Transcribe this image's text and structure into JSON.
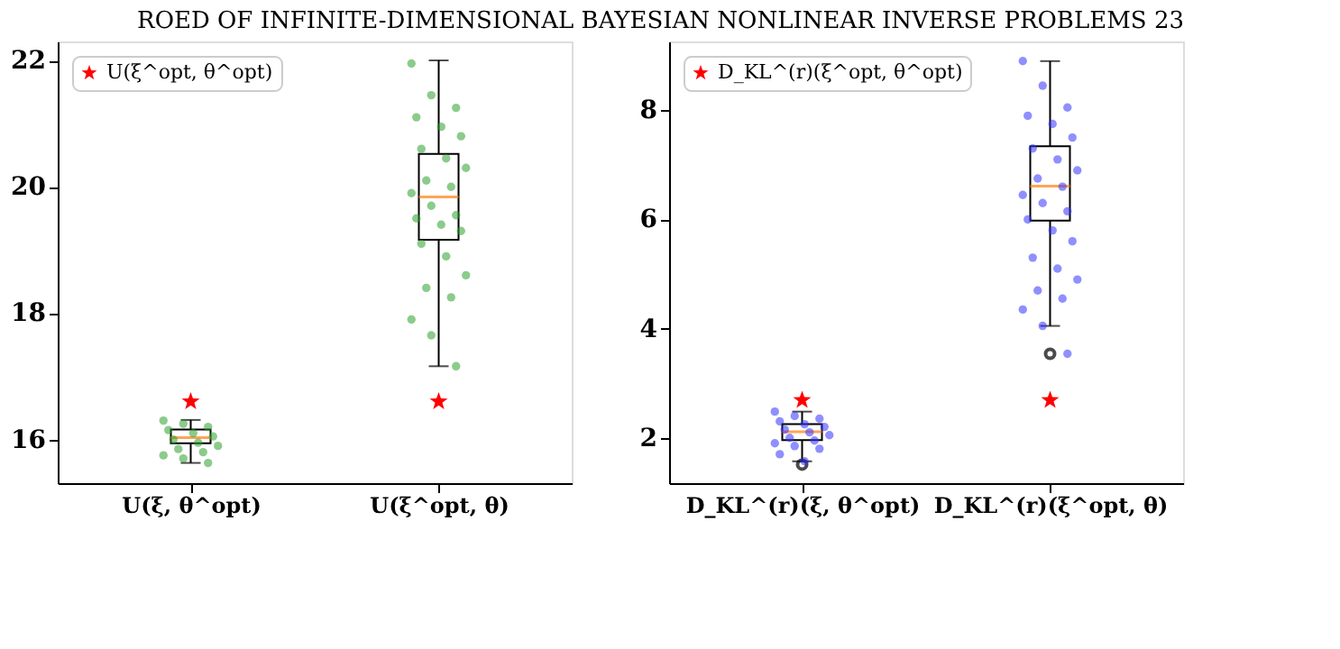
{
  "chart_data": [
    {
      "type": "box",
      "annotations": [
        "ROED OF INFINITE-DIMENSIONAL BAYESIAN NONLINEAR INVERSE PROBLEMS 23"
      ],
      "categories": [
        "U(ξ, θ^opt)",
        "U(ξ^opt, θ)"
      ],
      "ylim": [
        15.31,
        22.3
      ],
      "yticks": [
        16,
        18,
        20,
        22
      ],
      "grid": false,
      "legend": "top left",
      "series": [
        {
          "type": "box",
          "color": "#000000",
          "boxes": [
            {
              "low": 15.63,
              "q1": 15.94,
              "median": 16.03,
              "q3": 16.16,
              "high": 16.31
            },
            {
              "low": 17.16,
              "q1": 19.16,
              "median": 19.84,
              "q3": 20.52,
              "high": 22.0
            }
          ]
        },
        {
          "type": "scatter",
          "color": "#2ca02c",
          "marker": "circle",
          "x": [
            "U(ξ, θ^opt)",
            "U(ξ, θ^opt)",
            "U(ξ, θ^opt)",
            "U(ξ, θ^opt)",
            "U(ξ, θ^opt)",
            "U(ξ, θ^opt)",
            "U(ξ, θ^opt)",
            "U(ξ, θ^opt)",
            "U(ξ, θ^opt)",
            "U(ξ, θ^opt)",
            "U(ξ, θ^opt)",
            "U(ξ, θ^opt)",
            "U(ξ, θ^opt)",
            "U(ξ, θ^opt)",
            "U(ξ^opt, θ)",
            "U(ξ^opt, θ)",
            "U(ξ^opt, θ)",
            "U(ξ^opt, θ)",
            "U(ξ^opt, θ)",
            "U(ξ^opt, θ)",
            "U(ξ^opt, θ)",
            "U(ξ^opt, θ)",
            "U(ξ^opt, θ)",
            "U(ξ^opt, θ)",
            "U(ξ^opt, θ)",
            "U(ξ^opt, θ)",
            "U(ξ^opt, θ)",
            "U(ξ^opt, θ)",
            "U(ξ^opt, θ)",
            "U(ξ^opt, θ)",
            "U(ξ^opt, θ)",
            "U(ξ^opt, θ)",
            "U(ξ^opt, θ)",
            "U(ξ^opt, θ)",
            "U(ξ^opt, θ)",
            "U(ξ^opt, θ)",
            "U(ξ^opt, θ)",
            "U(ξ^opt, θ)",
            "U(ξ^opt, θ)"
          ],
          "values": [
            16.3,
            16.25,
            16.2,
            16.15,
            16.1,
            16.05,
            16.0,
            15.95,
            15.9,
            15.85,
            15.8,
            15.75,
            15.7,
            15.63,
            21.95,
            21.45,
            21.25,
            21.1,
            20.95,
            20.8,
            20.6,
            20.45,
            20.3,
            20.1,
            20.0,
            19.9,
            19.7,
            19.55,
            19.5,
            19.4,
            19.3,
            19.1,
            18.9,
            18.6,
            18.4,
            18.25,
            17.9,
            17.65,
            17.16
          ]
        },
        {
          "type": "scatter",
          "name": "U(ξ^opt, θ^opt)",
          "color": "#ff0000",
          "marker": "star",
          "x": [
            "U(ξ, θ^opt)",
            "U(ξ^opt, θ)"
          ],
          "values": [
            16.6,
            16.6
          ]
        }
      ]
    },
    {
      "type": "box",
      "categories": [
        "D_KL^(r)(ξ, θ^opt)",
        "D_KL^(r)(ξ^opt, θ)"
      ],
      "ylim": [
        1.17,
        9.26
      ],
      "yticks": [
        2,
        4,
        6,
        8
      ],
      "grid": false,
      "legend": "top left",
      "series": [
        {
          "type": "box",
          "color": "#000000",
          "boxes": [
            {
              "low": 1.57,
              "q1": 1.96,
              "median": 2.11,
              "q3": 2.25,
              "high": 2.48,
              "outliers": [
                1.51
              ]
            },
            {
              "low": 4.05,
              "q1": 5.98,
              "median": 6.61,
              "q3": 7.34,
              "high": 8.9,
              "outliers": [
                3.54
              ]
            }
          ]
        },
        {
          "type": "scatter",
          "color": "#3333ff",
          "marker": "circle",
          "x": [
            "D_KL^(r)(ξ, θ^opt)",
            "D_KL^(r)(ξ, θ^opt)",
            "D_KL^(r)(ξ, θ^opt)",
            "D_KL^(r)(ξ, θ^opt)",
            "D_KL^(r)(ξ, θ^opt)",
            "D_KL^(r)(ξ, θ^opt)",
            "D_KL^(r)(ξ, θ^opt)",
            "D_KL^(r)(ξ, θ^opt)",
            "D_KL^(r)(ξ, θ^opt)",
            "D_KL^(r)(ξ, θ^opt)",
            "D_KL^(r)(ξ, θ^opt)",
            "D_KL^(r)(ξ, θ^opt)",
            "D_KL^(r)(ξ, θ^opt)",
            "D_KL^(r)(ξ, θ^opt)",
            "D_KL^(r)(ξ, θ^opt)",
            "D_KL^(r)(ξ, θ^opt)",
            "D_KL^(r)(ξ^opt, θ)",
            "D_KL^(r)(ξ^opt, θ)",
            "D_KL^(r)(ξ^opt, θ)",
            "D_KL^(r)(ξ^opt, θ)",
            "D_KL^(r)(ξ^opt, θ)",
            "D_KL^(r)(ξ^opt, θ)",
            "D_KL^(r)(ξ^opt, θ)",
            "D_KL^(r)(ξ^opt, θ)",
            "D_KL^(r)(ξ^opt, θ)",
            "D_KL^(r)(ξ^opt, θ)",
            "D_KL^(r)(ξ^opt, θ)",
            "D_KL^(r)(ξ^opt, θ)",
            "D_KL^(r)(ξ^opt, θ)",
            "D_KL^(r)(ξ^opt, θ)",
            "D_KL^(r)(ξ^opt, θ)",
            "D_KL^(r)(ξ^opt, θ)",
            "D_KL^(r)(ξ^opt, θ)",
            "D_KL^(r)(ξ^opt, θ)",
            "D_KL^(r)(ξ^opt, θ)",
            "D_KL^(r)(ξ^opt, θ)",
            "D_KL^(r)(ξ^opt, θ)",
            "D_KL^(r)(ξ^opt, θ)",
            "D_KL^(r)(ξ^opt, θ)",
            "D_KL^(r)(ξ^opt, θ)",
            "D_KL^(r)(ξ^opt, θ)"
          ],
          "values": [
            2.48,
            2.4,
            2.35,
            2.3,
            2.25,
            2.2,
            2.15,
            2.1,
            2.05,
            2.0,
            1.95,
            1.9,
            1.85,
            1.8,
            1.7,
            1.57,
            8.9,
            8.45,
            8.05,
            7.9,
            7.75,
            7.5,
            7.3,
            7.1,
            6.9,
            6.75,
            6.6,
            6.45,
            6.3,
            6.15,
            6.0,
            5.8,
            5.6,
            5.3,
            5.1,
            4.9,
            4.7,
            4.55,
            4.35,
            4.05,
            3.54
          ]
        },
        {
          "type": "scatter",
          "name": "D_KL^(r)(ξ^opt, θ^opt)",
          "color": "#ff0000",
          "marker": "star",
          "x": [
            "D_KL^(r)(ξ, θ^opt)",
            "D_KL^(r)(ξ^opt, θ)"
          ],
          "values": [
            2.69,
            2.69
          ]
        }
      ]
    }
  ]
}
